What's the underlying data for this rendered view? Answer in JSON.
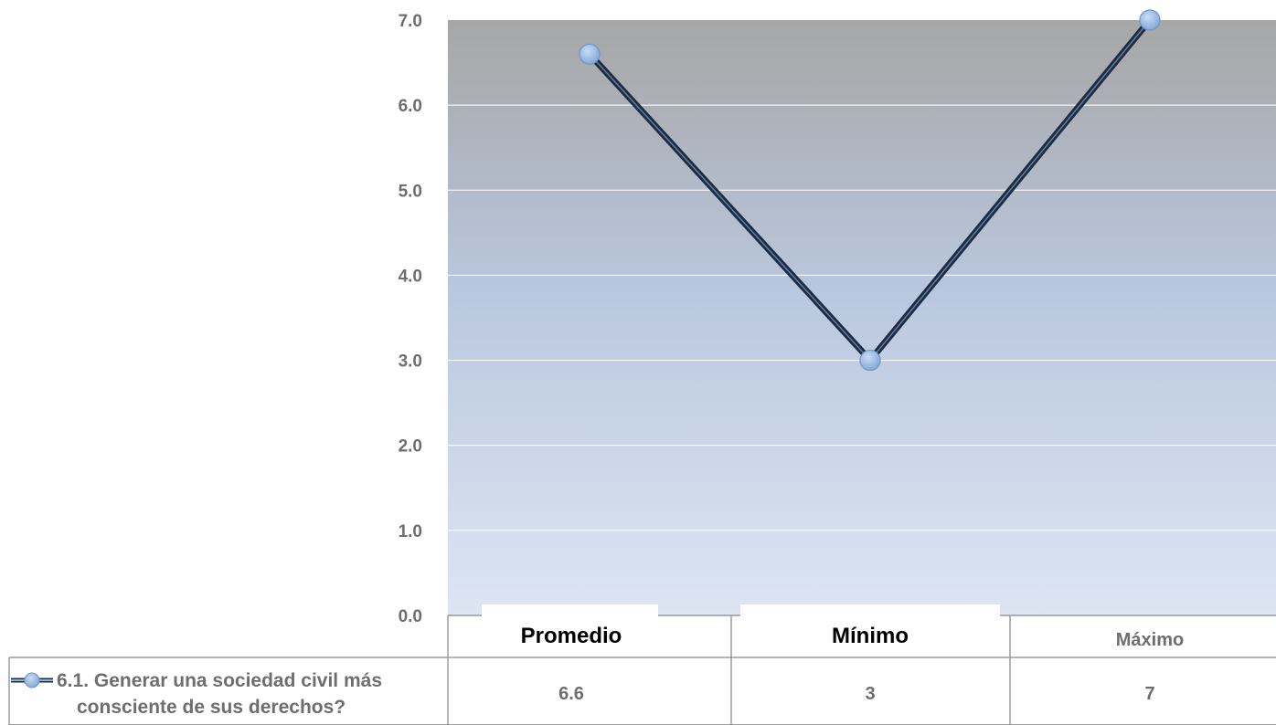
{
  "chart_data": {
    "type": "line",
    "categories": [
      "Promedio",
      "Mínimo",
      "Máximo"
    ],
    "series": [
      {
        "name": "6.1.  Generar una sociedad civil más consciente de sus derechos?",
        "values": [
          6.6,
          3,
          7
        ]
      }
    ],
    "value_labels": [
      "6.6",
      "3",
      "7"
    ],
    "y_ticks": [
      "0.0",
      "1.0",
      "2.0",
      "3.0",
      "4.0",
      "5.0",
      "6.0",
      "7.0"
    ],
    "ylim": [
      0,
      7
    ],
    "grid": true,
    "legend": "data-table-bottom-left",
    "legend_lines": [
      "6.1.  Generar una sociedad civil más",
      "consciente de sus derechos?"
    ],
    "colors": {
      "plot_top": "#a6a6a6",
      "plot_bottom": "#dce4f2",
      "line": "#1f2a3c",
      "marker": "#8db3e2",
      "grid": "#ffffff",
      "table_border": "#9a9a9a",
      "text": "#6e6e6e"
    }
  }
}
